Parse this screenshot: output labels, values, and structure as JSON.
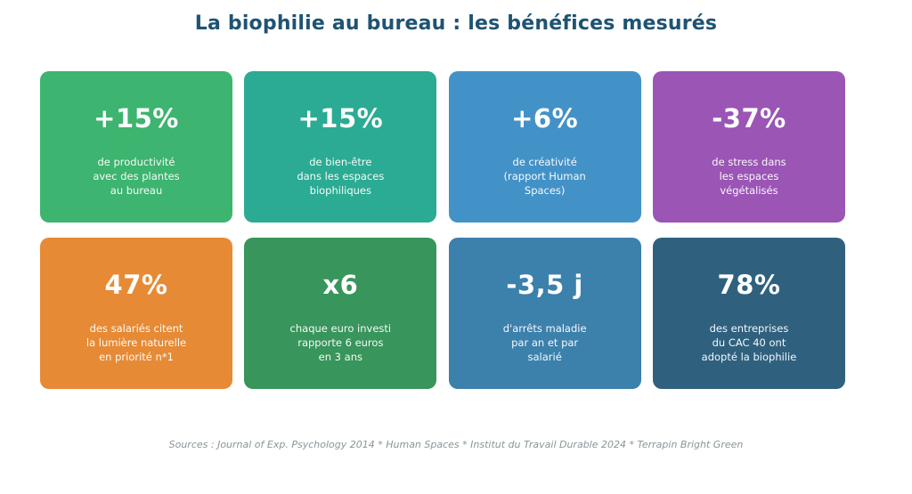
{
  "title": "La biophilie au bureau : les bénéfices mesurés",
  "title_color": "#1F5373",
  "background_color": "#FFFFFF",
  "footer": "Sources : Journal of Exp. Psychology 2014 * Human Spaces * Institut du Travail Durable 2024 * Terrapin Bright Green",
  "cards": [
    {
      "value": "+15%",
      "description": "de productivité\navec des plantes\nau bureau",
      "color": "#3DB46F"
    },
    {
      "value": "+15%",
      "description": "de bien-être\ndans les espaces\nbiophiliques",
      "color": "#2BAB93"
    },
    {
      "value": "+6%",
      "description": "de créativité\n(rapport Human\nSpaces)",
      "color": "#4392C7"
    },
    {
      "value": "-37%",
      "description": "de stress dans\nles espaces\nvégétalisés",
      "color": "#9A55B5"
    },
    {
      "value": "47%",
      "description": "des salariés citent\nla lumière naturelle\nen priorité n*1",
      "color": "#E78A35"
    },
    {
      "value": "x6",
      "description": "chaque euro investi\nrapporte 6 euros\nen 3 ans",
      "color": "#38955B"
    },
    {
      "value": "-3,5 j",
      "description": "d'arrêts maladie\npar an et par\nsalarié",
      "color": "#3C80AC"
    },
    {
      "value": "78%",
      "description": "des entreprises\ndu CAC 40 ont\nadopté la biophilie",
      "color": "#2F617F"
    }
  ],
  "chart_data": {
    "type": "table",
    "title": "La biophilie au bureau : les bénéfices mesurés",
    "categories": [
      "de productivité avec des plantes au bureau",
      "de bien-être dans les espaces biophiliques",
      "de créativité (rapport Human Spaces)",
      "de stress dans les espaces végétalisés",
      "des salariés citent la lumière naturelle en priorité n*1",
      "chaque euro investi rapporte 6 euros en 3 ans",
      "d'arrêts maladie par an et par salarié",
      "des entreprises du CAC 40 ont adopté la biophilie"
    ],
    "values": [
      "+15%",
      "+15%",
      "+6%",
      "-37%",
      "47%",
      "x6",
      "-3,5 j",
      "78%"
    ],
    "annotations": "Sources : Journal of Exp. Psychology 2014 * Human Spaces * Institut du Travail Durable 2024 * Terrapin Bright Green"
  }
}
